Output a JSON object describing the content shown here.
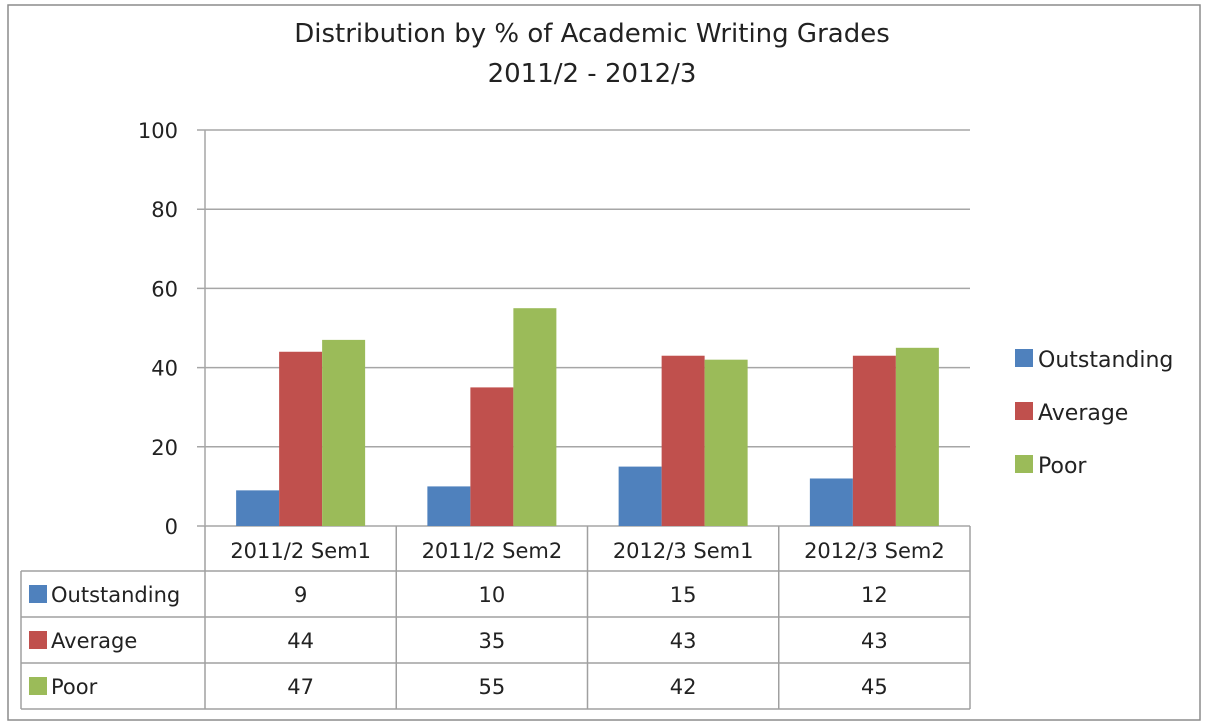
{
  "chart_data": {
    "type": "bar",
    "title": "Distribution by % of Academic Writing Grades",
    "subtitle": "2011/2 - 2012/3",
    "xlabel": "",
    "ylabel": "",
    "ylim": [
      0,
      100
    ],
    "yticks": [
      0,
      20,
      40,
      60,
      80,
      100
    ],
    "grid": true,
    "legend_position": "right",
    "categories": [
      "2011/2 Sem1",
      "2011/2 Sem2",
      "2012/3 Sem1",
      "2012/3 Sem2"
    ],
    "series": [
      {
        "name": "Outstanding",
        "color": "#4F81BD",
        "values": [
          9,
          10,
          15,
          12
        ]
      },
      {
        "name": "Average",
        "color": "#C0504D",
        "values": [
          44,
          35,
          43,
          43
        ]
      },
      {
        "name": "Poor",
        "color": "#9BBB59",
        "values": [
          47,
          55,
          42,
          45
        ]
      }
    ],
    "data_table": true
  }
}
